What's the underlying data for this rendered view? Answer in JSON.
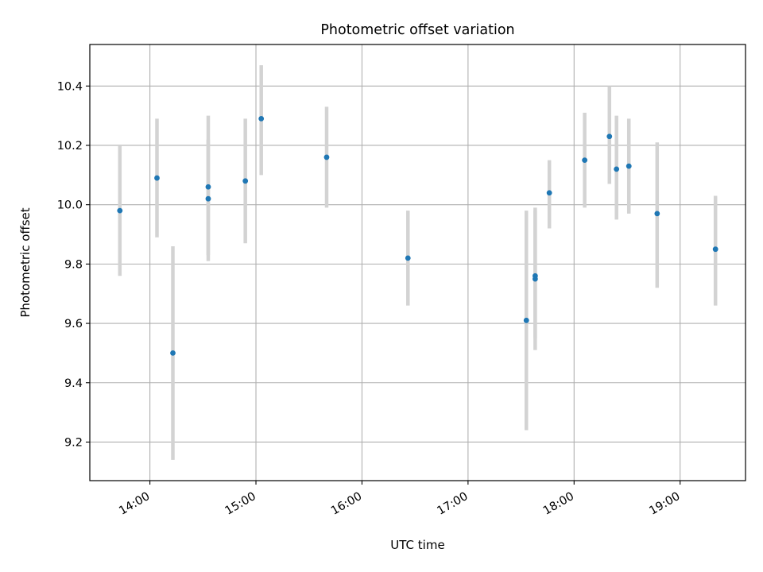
{
  "chart_data": {
    "type": "scatter",
    "title": "Photometric offset variation",
    "xlabel": "UTC time",
    "ylabel": "Photometric offset",
    "xlim": [
      "13:26",
      "19:37"
    ],
    "ylim": [
      9.07,
      10.54
    ],
    "x_ticks": [
      "14:00",
      "15:00",
      "16:00",
      "17:00",
      "18:00",
      "19:00"
    ],
    "y_ticks": [
      9.2,
      9.4,
      9.6,
      9.8,
      10.0,
      10.2,
      10.4
    ],
    "y_tick_labels": [
      "9.2",
      "9.4",
      "9.6",
      "9.8",
      "10.0",
      "10.2",
      "10.4"
    ],
    "grid": true,
    "colors": {
      "point": "#1f77b4",
      "errorbar": "#d3d3d3",
      "grid": "#b0b0b0"
    },
    "points": [
      {
        "x": "13:43",
        "y": 9.98,
        "ylow": 9.76,
        "yhigh": 10.2
      },
      {
        "x": "14:04",
        "y": 10.09,
        "ylow": 9.89,
        "yhigh": 10.29
      },
      {
        "x": "14:13",
        "y": 9.5,
        "ylow": 9.14,
        "yhigh": 9.86
      },
      {
        "x": "14:33",
        "y": 10.06,
        "ylow": 9.83,
        "yhigh": 10.3
      },
      {
        "x": "14:33",
        "y": 10.02,
        "ylow": 9.81,
        "yhigh": 10.22
      },
      {
        "x": "14:54",
        "y": 10.08,
        "ylow": 9.87,
        "yhigh": 10.29
      },
      {
        "x": "15:03",
        "y": 10.29,
        "ylow": 10.1,
        "yhigh": 10.47
      },
      {
        "x": "15:40",
        "y": 10.16,
        "ylow": 9.99,
        "yhigh": 10.33
      },
      {
        "x": "16:26",
        "y": 9.82,
        "ylow": 9.66,
        "yhigh": 9.98
      },
      {
        "x": "17:33",
        "y": 9.61,
        "ylow": 9.24,
        "yhigh": 9.98
      },
      {
        "x": "17:38",
        "y": 9.76,
        "ylow": 9.55,
        "yhigh": 9.99
      },
      {
        "x": "17:38",
        "y": 9.75,
        "ylow": 9.51,
        "yhigh": 9.98
      },
      {
        "x": "17:46",
        "y": 10.04,
        "ylow": 9.92,
        "yhigh": 10.15
      },
      {
        "x": "18:06",
        "y": 10.15,
        "ylow": 9.99,
        "yhigh": 10.31
      },
      {
        "x": "18:20",
        "y": 10.23,
        "ylow": 10.07,
        "yhigh": 10.4
      },
      {
        "x": "18:24",
        "y": 10.12,
        "ylow": 9.95,
        "yhigh": 10.3
      },
      {
        "x": "18:31",
        "y": 10.13,
        "ylow": 9.97,
        "yhigh": 10.29
      },
      {
        "x": "18:47",
        "y": 9.97,
        "ylow": 9.72,
        "yhigh": 10.21
      },
      {
        "x": "19:20",
        "y": 9.85,
        "ylow": 9.66,
        "yhigh": 10.03
      }
    ]
  }
}
